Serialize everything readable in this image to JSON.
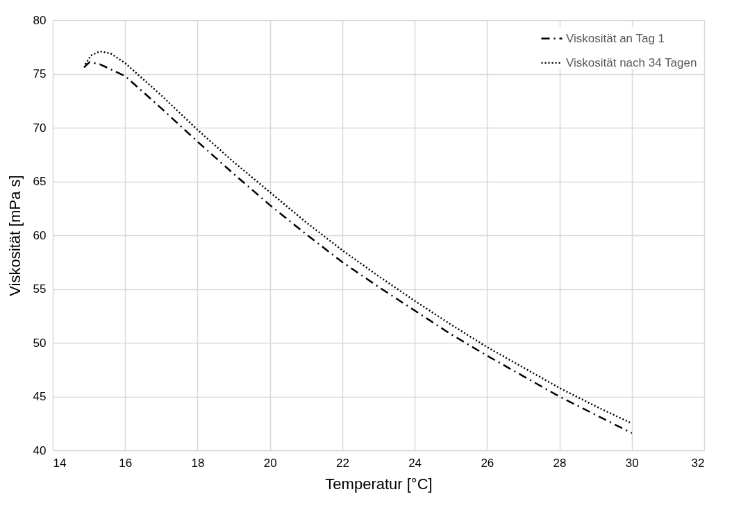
{
  "chart_data": {
    "type": "line",
    "xlabel": "Temperatur [°C]",
    "ylabel": "Viskosität [mPa s]",
    "xlim": [
      14,
      32
    ],
    "xticks": [
      14,
      16,
      18,
      20,
      22,
      24,
      26,
      28,
      30,
      32
    ],
    "ylim": [
      40,
      80
    ],
    "yticks": [
      40,
      45,
      50,
      55,
      60,
      65,
      70,
      75,
      80
    ],
    "grid": true,
    "legend": "top right",
    "marker": "none",
    "series": [
      {
        "name": "Viskosität an Tag 1",
        "color": "#000000",
        "line_style": "dashdot",
        "x": [
          14.86,
          15.02,
          15.3,
          16,
          17,
          18,
          19,
          20,
          21,
          22,
          23,
          24,
          25,
          26,
          27,
          28,
          29,
          30
        ],
        "values": [
          75.6,
          76.1,
          75.9,
          74.8,
          71.8,
          68.7,
          65.7,
          62.8,
          60.1,
          57.5,
          55.2,
          53.0,
          50.8,
          48.8,
          46.9,
          45.0,
          43.3,
          41.6
        ]
      },
      {
        "name": "Viskosität nach 34 Tagen",
        "color": "#000000",
        "line_style": "dotted",
        "x": [
          14.9,
          15.05,
          15.3,
          15.6,
          16,
          17,
          18,
          19,
          20,
          21,
          22,
          23,
          24,
          25,
          26,
          27,
          28,
          29,
          30
        ],
        "values": [
          75.9,
          76.7,
          77.1,
          76.9,
          76.0,
          73.0,
          69.8,
          66.8,
          64.0,
          61.2,
          58.6,
          56.2,
          53.9,
          51.7,
          49.6,
          47.7,
          45.8,
          44.1,
          42.5
        ]
      }
    ]
  }
}
